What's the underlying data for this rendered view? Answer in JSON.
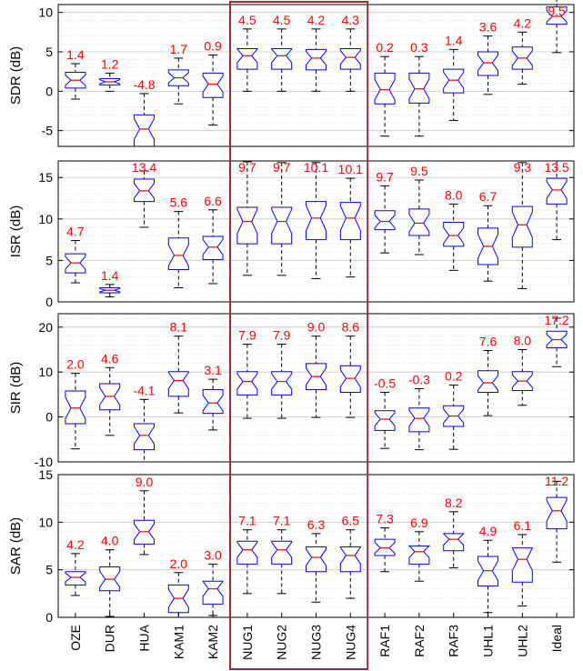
{
  "chart_data": {
    "type": "boxplot",
    "categories": [
      "OZE",
      "DUR",
      "HUA",
      "KAM1",
      "KAM2",
      "NUG1",
      "NUG2",
      "NUG3",
      "NUG4",
      "RAF1",
      "RAF2",
      "RAF3",
      "UHL1",
      "UHL2",
      "Ideal"
    ],
    "highlight_group": [
      "NUG1",
      "NUG2",
      "NUG3",
      "NUG4"
    ],
    "colors": {
      "box": "#0000ff",
      "median": "#ff0000",
      "whisker": "#000000",
      "label": "#ff0000",
      "highlight": "#a0283c",
      "grid": "#d9d9d9"
    },
    "grid": true,
    "panels": [
      {
        "ylabel": "SDR (dB)",
        "ylim": [
          -7,
          11
        ],
        "yticks": [
          -5,
          0,
          5,
          10
        ],
        "median_labels": [
          "1.4",
          "1.2",
          "-4.8",
          "1.7",
          "0.9",
          "4.5",
          "4.5",
          "4.2",
          "4.3",
          "0.2",
          "0.3",
          "1.4",
          "3.6",
          "4.2",
          "9.5"
        ],
        "boxes": [
          {
            "min": -1.0,
            "q1": 0.4,
            "median": 1.4,
            "q3": 2.4,
            "max": 3.5
          },
          {
            "min": 0.0,
            "q1": 0.8,
            "median": 1.2,
            "q3": 1.6,
            "max": 2.3
          },
          {
            "min": -7.0,
            "q1": -7.0,
            "median": -4.8,
            "q3": -3.0,
            "max": -0.3
          },
          {
            "min": -1.6,
            "q1": 0.7,
            "median": 1.7,
            "q3": 2.7,
            "max": 4.2
          },
          {
            "min": -4.3,
            "q1": -0.8,
            "median": 0.9,
            "q3": 2.3,
            "max": 4.6
          },
          {
            "min": 0.0,
            "q1": 2.8,
            "median": 4.5,
            "q3": 5.4,
            "max": 7.9
          },
          {
            "min": 0.0,
            "q1": 2.8,
            "median": 4.5,
            "q3": 5.4,
            "max": 7.9
          },
          {
            "min": 0.0,
            "q1": 2.7,
            "median": 4.2,
            "q3": 5.3,
            "max": 7.9
          },
          {
            "min": 0.0,
            "q1": 2.8,
            "median": 4.3,
            "q3": 5.4,
            "max": 7.9
          },
          {
            "min": -5.7,
            "q1": -1.6,
            "median": 0.2,
            "q3": 2.3,
            "max": 4.4
          },
          {
            "min": -5.7,
            "q1": -1.5,
            "median": 0.3,
            "q3": 2.3,
            "max": 4.4
          },
          {
            "min": -3.7,
            "q1": -0.2,
            "median": 1.4,
            "q3": 2.8,
            "max": 5.3
          },
          {
            "min": -0.4,
            "q1": 2.0,
            "median": 3.6,
            "q3": 5.0,
            "max": 7.0
          },
          {
            "min": 0.9,
            "q1": 2.8,
            "median": 4.2,
            "q3": 5.6,
            "max": 7.5
          },
          {
            "min": 4.9,
            "q1": 8.5,
            "median": 9.5,
            "q3": 10.7,
            "max": 12.6
          }
        ]
      },
      {
        "ylabel": "ISR (dB)",
        "ylim": [
          0,
          17
        ],
        "yticks": [
          0,
          5,
          10,
          15
        ],
        "median_labels": [
          "4.7",
          "1.4",
          "13.4",
          "5.6",
          "6.6",
          "9.7",
          "9.7",
          "10.1",
          "10.1",
          "9.7",
          "9.5",
          "8.0",
          "6.7",
          "9.3",
          "13.5"
        ],
        "boxes": [
          {
            "min": 2.3,
            "q1": 3.5,
            "median": 4.7,
            "q3": 5.8,
            "max": 7.4
          },
          {
            "min": 0.6,
            "q1": 1.1,
            "median": 1.4,
            "q3": 1.7,
            "max": 2.1
          },
          {
            "min": 9.0,
            "q1": 12.1,
            "median": 13.4,
            "q3": 14.8,
            "max": 15.8
          },
          {
            "min": 1.7,
            "q1": 3.9,
            "median": 5.6,
            "q3": 7.7,
            "max": 10.9
          },
          {
            "min": 2.2,
            "q1": 5.1,
            "median": 6.6,
            "q3": 7.9,
            "max": 11.1
          },
          {
            "min": 3.2,
            "q1": 7.0,
            "median": 9.7,
            "q3": 11.4,
            "max": 16.9
          },
          {
            "min": 3.2,
            "q1": 7.0,
            "median": 9.7,
            "q3": 11.4,
            "max": 16.8
          },
          {
            "min": 2.8,
            "q1": 7.5,
            "median": 10.1,
            "q3": 12.1,
            "max": 16.8
          },
          {
            "min": 3.0,
            "q1": 7.5,
            "median": 10.1,
            "q3": 12.0,
            "max": 14.9
          },
          {
            "min": 5.9,
            "q1": 8.7,
            "median": 9.7,
            "q3": 11.0,
            "max": 14.0
          },
          {
            "min": 5.7,
            "q1": 8.0,
            "median": 9.5,
            "q3": 11.2,
            "max": 14.7
          },
          {
            "min": 3.8,
            "q1": 6.7,
            "median": 8.0,
            "q3": 9.6,
            "max": 11.8
          },
          {
            "min": 2.5,
            "q1": 4.5,
            "median": 6.7,
            "q3": 8.9,
            "max": 11.6
          },
          {
            "min": 1.6,
            "q1": 6.6,
            "median": 9.3,
            "q3": 11.5,
            "max": 16.8
          },
          {
            "min": 7.5,
            "q1": 11.8,
            "median": 13.5,
            "q3": 14.9,
            "max": 17.0
          }
        ]
      },
      {
        "ylabel": "SIR (dB)",
        "ylim": [
          -10,
          23
        ],
        "yticks": [
          -10,
          0,
          10,
          20
        ],
        "median_labels": [
          "2.0",
          "4.6",
          "-4.1",
          "8.1",
          "3.1",
          "7.9",
          "7.9",
          "9.0",
          "8.6",
          "-0.5",
          "-0.3",
          "0.2",
          "7.6",
          "8.0",
          "17.2"
        ],
        "boxes": [
          {
            "min": -7.1,
            "q1": -1.5,
            "median": 2.0,
            "q3": 5.8,
            "max": 9.7
          },
          {
            "min": -4.1,
            "q1": 1.6,
            "median": 4.6,
            "q3": 7.4,
            "max": 11.0
          },
          {
            "min": -10.0,
            "q1": -7.3,
            "median": -4.1,
            "q3": -1.5,
            "max": 3.9
          },
          {
            "min": 0.9,
            "q1": 4.6,
            "median": 8.1,
            "q3": 10.1,
            "max": 18.0
          },
          {
            "min": -2.9,
            "q1": 0.8,
            "median": 3.1,
            "q3": 6.1,
            "max": 8.4
          },
          {
            "min": -0.3,
            "q1": 4.9,
            "median": 7.9,
            "q3": 10.1,
            "max": 16.2
          },
          {
            "min": -0.3,
            "q1": 4.9,
            "median": 7.9,
            "q3": 10.1,
            "max": 16.2
          },
          {
            "min": -0.1,
            "q1": 6.1,
            "median": 9.0,
            "q3": 11.9,
            "max": 18.0
          },
          {
            "min": -0.1,
            "q1": 5.5,
            "median": 8.6,
            "q3": 11.4,
            "max": 18.0
          },
          {
            "min": -7.0,
            "q1": -3.0,
            "median": -0.5,
            "q3": 1.4,
            "max": 5.5
          },
          {
            "min": -7.3,
            "q1": -3.3,
            "median": -0.3,
            "q3": 2.0,
            "max": 6.3
          },
          {
            "min": -7.2,
            "q1": -2.1,
            "median": 0.2,
            "q3": 2.5,
            "max": 7.1
          },
          {
            "min": 0.3,
            "q1": 5.5,
            "median": 7.6,
            "q3": 10.3,
            "max": 14.8
          },
          {
            "min": 2.6,
            "q1": 5.9,
            "median": 8.0,
            "q3": 10.1,
            "max": 15.0
          },
          {
            "min": 11.2,
            "q1": 15.4,
            "median": 17.2,
            "q3": 19.1,
            "max": 22.0
          }
        ]
      },
      {
        "ylabel": "SAR (dB)",
        "ylim": [
          0,
          15
        ],
        "yticks": [
          0,
          5,
          10,
          15
        ],
        "median_labels": [
          "4.2",
          "4.0",
          "9.0",
          "2.0",
          "3.0",
          "7.1",
          "7.1",
          "6.3",
          "6.5",
          "7.3",
          "6.9",
          "8.2",
          "4.9",
          "6.1",
          "11.2"
        ],
        "boxes": [
          {
            "min": 2.3,
            "q1": 3.4,
            "median": 4.2,
            "q3": 4.8,
            "max": 6.7
          },
          {
            "min": 0.1,
            "q1": 2.8,
            "median": 4.0,
            "q3": 5.3,
            "max": 7.1
          },
          {
            "min": 6.6,
            "q1": 7.7,
            "median": 9.0,
            "q3": 10.2,
            "max": 13.3
          },
          {
            "min": 0.0,
            "q1": 0.5,
            "median": 2.0,
            "q3": 3.4,
            "max": 4.7
          },
          {
            "min": 0.2,
            "q1": 1.4,
            "median": 3.0,
            "q3": 3.8,
            "max": 5.6
          },
          {
            "min": 2.5,
            "q1": 5.6,
            "median": 7.1,
            "q3": 8.0,
            "max": 9.2
          },
          {
            "min": 2.5,
            "q1": 5.6,
            "median": 7.1,
            "q3": 8.0,
            "max": 9.2
          },
          {
            "min": 1.6,
            "q1": 4.8,
            "median": 6.3,
            "q3": 7.4,
            "max": 8.8
          },
          {
            "min": 2.0,
            "q1": 4.8,
            "median": 6.5,
            "q3": 7.4,
            "max": 9.2
          },
          {
            "min": 4.8,
            "q1": 6.5,
            "median": 7.3,
            "q3": 8.2,
            "max": 9.4
          },
          {
            "min": 3.8,
            "q1": 5.6,
            "median": 6.9,
            "q3": 7.5,
            "max": 9.0
          },
          {
            "min": 5.2,
            "q1": 7.0,
            "median": 8.2,
            "q3": 8.8,
            "max": 11.1
          },
          {
            "min": 0.5,
            "q1": 3.3,
            "median": 4.9,
            "q3": 6.4,
            "max": 8.1
          },
          {
            "min": 1.2,
            "q1": 3.7,
            "median": 6.1,
            "q3": 7.3,
            "max": 8.7
          },
          {
            "min": 5.8,
            "q1": 9.3,
            "median": 11.2,
            "q3": 12.6,
            "max": 14.3
          }
        ]
      }
    ]
  }
}
